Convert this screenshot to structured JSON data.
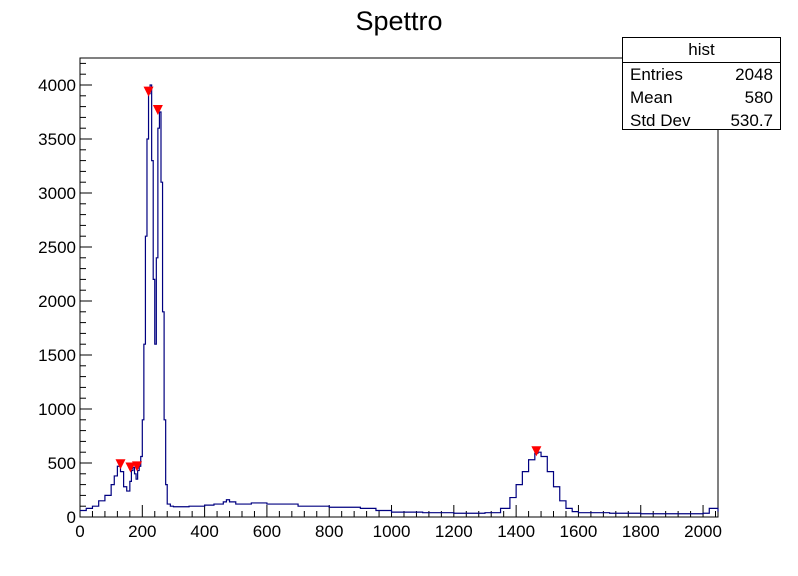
{
  "chart_data": {
    "type": "line",
    "title": "Spettro",
    "xlabel": "",
    "ylabel": "",
    "xlim": [
      0,
      2048
    ],
    "ylim": [
      0,
      4250
    ],
    "x_ticks": [
      0,
      200,
      400,
      600,
      800,
      1000,
      1200,
      1400,
      1600,
      1800,
      2000
    ],
    "y_ticks": [
      0,
      500,
      1000,
      1500,
      2000,
      2500,
      3000,
      3500,
      4000
    ],
    "line_color": "#000080",
    "marker_color": "#ff0000",
    "series": [
      {
        "x": [
          0,
          20,
          40,
          60,
          80,
          100,
          110,
          120,
          130,
          140,
          150,
          160,
          165,
          170,
          175,
          180,
          185,
          190,
          195,
          200,
          205,
          210,
          215,
          220,
          225,
          230,
          235,
          240,
          245,
          250,
          255,
          260,
          265,
          270,
          275,
          280,
          290,
          300,
          350,
          400,
          430,
          460,
          470,
          480,
          500,
          550,
          600,
          700,
          800,
          900,
          950,
          1000,
          1100,
          1200,
          1300,
          1350,
          1380,
          1400,
          1420,
          1440,
          1460,
          1470,
          1480,
          1500,
          1520,
          1540,
          1560,
          1580,
          1600,
          1700,
          1800,
          1900,
          2000,
          2020,
          2048
        ],
        "y": [
          60,
          80,
          100,
          150,
          200,
          300,
          380,
          470,
          420,
          280,
          240,
          330,
          430,
          460,
          400,
          350,
          430,
          470,
          560,
          900,
          1600,
          2600,
          3500,
          3920,
          4000,
          3300,
          2200,
          1600,
          2400,
          3600,
          3750,
          3100,
          1900,
          900,
          300,
          120,
          100,
          95,
          100,
          110,
          120,
          140,
          160,
          140,
          120,
          130,
          120,
          100,
          90,
          80,
          60,
          45,
          40,
          35,
          40,
          80,
          180,
          300,
          420,
          530,
          590,
          600,
          560,
          420,
          280,
          150,
          80,
          50,
          40,
          35,
          30,
          30,
          35,
          80,
          50
        ]
      }
    ],
    "peaks": [
      {
        "x": 130,
        "y": 470
      },
      {
        "x": 162,
        "y": 440
      },
      {
        "x": 183,
        "y": 450
      },
      {
        "x": 220,
        "y": 3920
      },
      {
        "x": 250,
        "y": 3750
      },
      {
        "x": 1465,
        "y": 590
      }
    ]
  },
  "stats": {
    "name": "hist",
    "entries_label": "Entries",
    "entries_value": "2048",
    "mean_label": "Mean",
    "mean_value": "580",
    "stddev_label": "Std Dev",
    "stddev_value": "530.7"
  }
}
